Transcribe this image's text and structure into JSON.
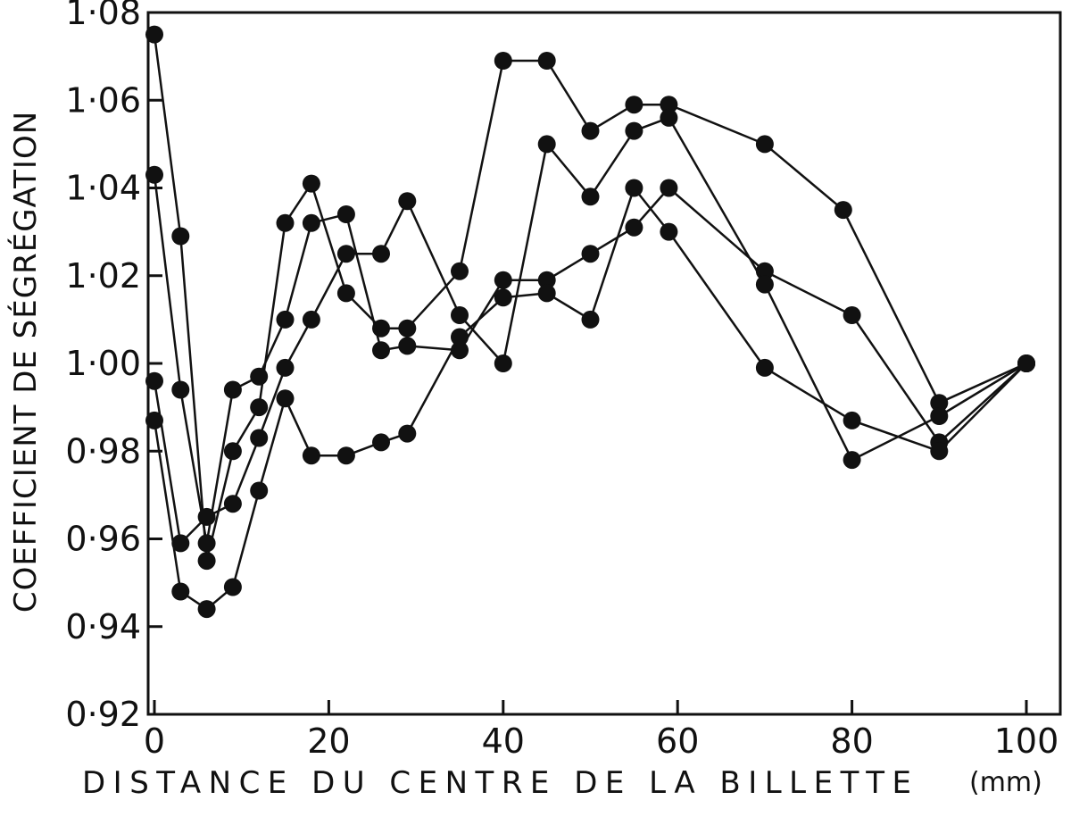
{
  "chart_data": {
    "type": "line",
    "xlabel": "DISTANCE DU CENTRE DE LA BILLETTE",
    "xunit": "(mm)",
    "ylabel": "COEFFICIENT DE SÉGRÉGATION",
    "xlim": [
      0,
      100
    ],
    "ylim": [
      0.92,
      1.08
    ],
    "xticks": [
      0,
      20,
      40,
      60,
      80,
      100
    ],
    "xtick_labels": [
      "0",
      "20",
      "40",
      "60",
      "80",
      "100"
    ],
    "yticks": [
      0.92,
      0.94,
      0.96,
      0.98,
      1.0,
      1.02,
      1.04,
      1.06,
      1.08
    ],
    "ytick_labels": [
      "0·92",
      "0·94",
      "0·96",
      "0·98",
      "1·00",
      "1·02",
      "1·04",
      "1·06",
      "1·08"
    ],
    "grid": false,
    "legend": false,
    "colors": {
      "line": "#111111",
      "marker": "#111111",
      "frame": "#111111"
    },
    "series": [
      {
        "points": [
          [
            0,
            1.075
          ],
          [
            3,
            1.029
          ],
          [
            6,
            0.955
          ],
          [
            9,
            0.98
          ],
          [
            12,
            0.99
          ],
          [
            15,
            1.032
          ],
          [
            18,
            1.041
          ],
          [
            22,
            1.016
          ],
          [
            26,
            1.008
          ],
          [
            29,
            1.008
          ],
          [
            35,
            1.021
          ],
          [
            40,
            1.069
          ],
          [
            45,
            1.069
          ],
          [
            50,
            1.053
          ],
          [
            55,
            1.059
          ],
          [
            59,
            1.059
          ],
          [
            70,
            1.05
          ],
          [
            79,
            1.035
          ],
          [
            90,
            0.991
          ],
          [
            100,
            1.0
          ]
        ]
      },
      {
        "points": [
          [
            0,
            1.043
          ],
          [
            3,
            0.994
          ],
          [
            6,
            0.959
          ],
          [
            9,
            0.994
          ],
          [
            12,
            0.997
          ],
          [
            15,
            1.01
          ],
          [
            18,
            1.032
          ],
          [
            22,
            1.034
          ],
          [
            26,
            1.003
          ],
          [
            29,
            1.004
          ],
          [
            35,
            1.003
          ],
          [
            40,
            1.019
          ],
          [
            45,
            1.019
          ],
          [
            50,
            1.025
          ],
          [
            55,
            1.031
          ],
          [
            59,
            1.04
          ],
          [
            70,
            1.021
          ],
          [
            80,
            1.011
          ],
          [
            90,
            0.982
          ],
          [
            100,
            1.0
          ]
        ]
      },
      {
        "points": [
          [
            0,
            0.996
          ],
          [
            3,
            0.959
          ],
          [
            6,
            0.965
          ],
          [
            9,
            0.968
          ],
          [
            12,
            0.983
          ],
          [
            15,
            0.999
          ],
          [
            18,
            1.01
          ],
          [
            22,
            1.025
          ],
          [
            26,
            1.025
          ],
          [
            29,
            1.037
          ],
          [
            35,
            1.011
          ],
          [
            40,
            1.0
          ],
          [
            45,
            1.05
          ],
          [
            50,
            1.038
          ],
          [
            55,
            1.053
          ],
          [
            59,
            1.056
          ],
          [
            70,
            1.018
          ],
          [
            80,
            0.978
          ],
          [
            90,
            0.988
          ],
          [
            100,
            1.0
          ]
        ]
      },
      {
        "points": [
          [
            0,
            0.987
          ],
          [
            3,
            0.948
          ],
          [
            6,
            0.944
          ],
          [
            9,
            0.949
          ],
          [
            12,
            0.971
          ],
          [
            15,
            0.992
          ],
          [
            18,
            0.979
          ],
          [
            22,
            0.979
          ],
          [
            26,
            0.982
          ],
          [
            29,
            0.984
          ],
          [
            35,
            1.006
          ],
          [
            40,
            1.015
          ],
          [
            45,
            1.016
          ],
          [
            50,
            1.01
          ],
          [
            55,
            1.04
          ],
          [
            59,
            1.03
          ],
          [
            70,
            0.999
          ],
          [
            80,
            0.987
          ],
          [
            90,
            0.98
          ],
          [
            100,
            1.0
          ]
        ]
      }
    ]
  }
}
